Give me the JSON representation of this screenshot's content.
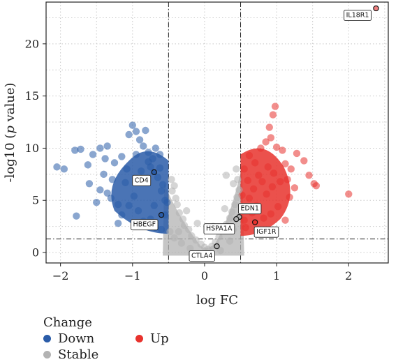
{
  "chart_data": {
    "type": "scatter",
    "xlabel": "log FC",
    "ylabel_prefix": "-log10 (",
    "ylabel_italic": "p",
    "ylabel_suffix": " value)",
    "xlim": [
      -2.2,
      2.55
    ],
    "ylim": [
      -1.0,
      24.0
    ],
    "x_ticks": [
      -2,
      -1,
      0,
      1,
      2
    ],
    "y_ticks": [
      0,
      5,
      10,
      15,
      20
    ],
    "grid": true,
    "threshold_lines": {
      "x": [
        -0.5,
        0.5
      ],
      "y": [
        1.3
      ]
    },
    "legend": {
      "title": "Change",
      "placement": "bottom-left",
      "entries": [
        {
          "label": "Down",
          "color": "#2a5ca8"
        },
        {
          "label": "Up",
          "color": "#e8322d"
        },
        {
          "label": "Stable",
          "color": "#b3b3b3"
        }
      ]
    },
    "highlighted_genes": [
      {
        "gene": "IL18R1",
        "x": 2.38,
        "y": 23.4,
        "color": "#f08080"
      },
      {
        "gene": "CD4",
        "x": -0.7,
        "y": 7.7,
        "color": "#2a5ca8"
      },
      {
        "gene": "HBEGF",
        "x": -0.6,
        "y": 3.6,
        "color": "#2a5ca8"
      },
      {
        "gene": "EDN1",
        "x": 0.48,
        "y": 3.4,
        "color": "#b3b3b3"
      },
      {
        "gene": "HSPA1A",
        "x": 0.44,
        "y": 3.2,
        "color": "#b3b3b3"
      },
      {
        "gene": "IGF1R",
        "x": 0.7,
        "y": 2.9,
        "color": "#e8322d"
      },
      {
        "gene": "CTLA4",
        "x": 0.17,
        "y": 0.6,
        "color": "#b3b3b3"
      }
    ],
    "series": [
      {
        "name": "Down",
        "color": "#2a5ca8",
        "points": [
          [
            -2.05,
            8.2
          ],
          [
            -1.95,
            8.0
          ],
          [
            -1.8,
            9.8
          ],
          [
            -1.72,
            9.9
          ],
          [
            -1.78,
            3.5
          ],
          [
            -1.6,
            6.6
          ],
          [
            -1.55,
            9.4
          ],
          [
            -1.45,
            10.0
          ],
          [
            -1.35,
            10.2
          ],
          [
            -1.4,
            7.5
          ],
          [
            -1.3,
            5.2
          ],
          [
            -1.2,
            4.6
          ],
          [
            -1.15,
            9.2
          ],
          [
            -1.05,
            11.3
          ],
          [
            -1.0,
            12.2
          ],
          [
            -0.95,
            11.6
          ],
          [
            -0.9,
            10.8
          ],
          [
            -0.85,
            10.2
          ],
          [
            -0.82,
            11.7
          ],
          [
            -0.78,
            9.6
          ],
          [
            -0.75,
            8.2
          ],
          [
            -0.72,
            9.0
          ],
          [
            -0.68,
            10.0
          ],
          [
            -0.62,
            9.4
          ],
          [
            -1.25,
            8.6
          ],
          [
            -1.1,
            6.7
          ],
          [
            -0.98,
            5.4
          ],
          [
            -0.88,
            7.8
          ],
          [
            -0.8,
            6.9
          ],
          [
            -0.7,
            4.5
          ],
          [
            -0.65,
            7.2
          ],
          [
            -0.6,
            5.9
          ],
          [
            -0.55,
            5.0
          ],
          [
            -1.45,
            6.0
          ],
          [
            -1.5,
            4.8
          ],
          [
            -1.28,
            7.0
          ],
          [
            -1.15,
            3.6
          ],
          [
            -1.2,
            2.8
          ],
          [
            -1.05,
            4.5
          ],
          [
            -0.92,
            4.0
          ],
          [
            -0.85,
            3.0
          ],
          [
            -0.75,
            3.2
          ],
          [
            -0.68,
            2.4
          ],
          [
            -0.6,
            2.2
          ],
          [
            -0.55,
            3.6
          ],
          [
            -0.52,
            4.8
          ],
          [
            -0.58,
            6.5
          ],
          [
            -0.62,
            8.1
          ],
          [
            -1.62,
            8.4
          ],
          [
            -1.38,
            9.0
          ],
          [
            -0.95,
            9.4
          ],
          [
            -0.78,
            8.7
          ],
          [
            -1.35,
            5.7
          ],
          [
            -1.08,
            8.0
          ]
        ]
      },
      {
        "name": "Up",
        "color": "#e8322d",
        "points": [
          [
            0.55,
            8.0
          ],
          [
            0.62,
            9.3
          ],
          [
            0.7,
            8.6
          ],
          [
            0.78,
            10.0
          ],
          [
            0.85,
            10.6
          ],
          [
            0.9,
            12.0
          ],
          [
            0.92,
            11.0
          ],
          [
            0.95,
            13.2
          ],
          [
            0.98,
            14.0
          ],
          [
            1.0,
            10.1
          ],
          [
            1.08,
            9.8
          ],
          [
            1.12,
            8.5
          ],
          [
            1.2,
            8.0
          ],
          [
            1.28,
            9.5
          ],
          [
            1.38,
            8.8
          ],
          [
            1.45,
            7.4
          ],
          [
            1.52,
            6.6
          ],
          [
            1.55,
            6.4
          ],
          [
            1.12,
            3.1
          ],
          [
            1.18,
            5.3
          ],
          [
            1.02,
            4.4
          ],
          [
            0.94,
            6.3
          ],
          [
            0.86,
            5.6
          ],
          [
            0.8,
            6.8
          ],
          [
            0.75,
            7.4
          ],
          [
            0.68,
            6.1
          ],
          [
            0.62,
            5.2
          ],
          [
            0.58,
            4.2
          ],
          [
            0.55,
            3.1
          ],
          [
            0.66,
            3.8
          ],
          [
            0.72,
            4.5
          ],
          [
            0.82,
            3.3
          ],
          [
            0.92,
            3.7
          ],
          [
            1.05,
            6.8
          ],
          [
            1.25,
            6.2
          ],
          [
            0.6,
            6.9
          ],
          [
            2.0,
            5.6
          ],
          [
            0.88,
            8.2
          ],
          [
            0.96,
            7.6
          ],
          [
            1.15,
            7.0
          ],
          [
            0.52,
            5.5
          ],
          [
            0.57,
            2.4
          ]
        ]
      },
      {
        "name": "Stable",
        "color": "#b3b3b3",
        "points": [
          [
            -0.45,
            5.9
          ],
          [
            -0.4,
            5.2
          ],
          [
            -0.38,
            4.6
          ],
          [
            -0.35,
            3.8
          ],
          [
            -0.3,
            3.2
          ],
          [
            -0.28,
            2.6
          ],
          [
            -0.22,
            2.2
          ],
          [
            -0.18,
            1.6
          ],
          [
            -0.12,
            1.2
          ],
          [
            -0.05,
            0.8
          ],
          [
            0.0,
            0.5
          ],
          [
            0.05,
            0.3
          ],
          [
            0.1,
            0.6
          ],
          [
            0.15,
            1.0
          ],
          [
            0.2,
            1.5
          ],
          [
            0.25,
            2.1
          ],
          [
            0.3,
            2.7
          ],
          [
            0.35,
            3.3
          ],
          [
            0.38,
            3.9
          ],
          [
            0.42,
            4.6
          ],
          [
            0.45,
            5.3
          ],
          [
            0.48,
            6.0
          ],
          [
            0.46,
            7.0
          ],
          [
            0.44,
            8.0
          ],
          [
            0.3,
            7.4
          ],
          [
            0.4,
            6.6
          ],
          [
            -0.46,
            7.0
          ],
          [
            -0.42,
            6.4
          ],
          [
            -0.48,
            2.0
          ],
          [
            -0.42,
            1.4
          ],
          [
            -0.2,
            0.4
          ],
          [
            0.22,
            0.2
          ],
          [
            0.35,
            1.1
          ],
          [
            -0.32,
            0.9
          ],
          [
            0.28,
            4.2
          ],
          [
            -0.25,
            4.0
          ],
          [
            0.4,
            2.2
          ],
          [
            -0.36,
            2.0
          ],
          [
            0.12,
            2.5
          ],
          [
            -0.1,
            2.8
          ]
        ]
      }
    ]
  }
}
